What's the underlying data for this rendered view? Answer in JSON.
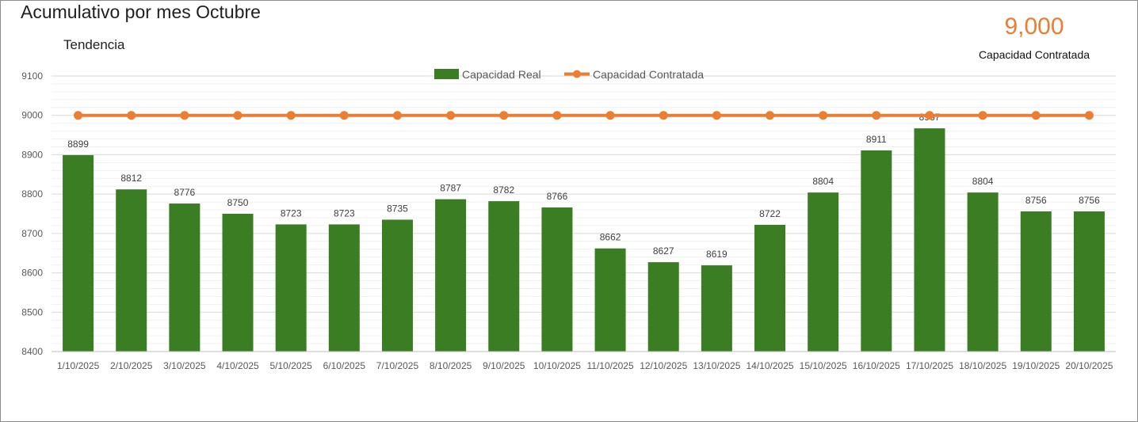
{
  "header": {
    "title": "Acumulativo por mes Octubre",
    "subtitle": "Tendencia"
  },
  "kpi": {
    "value": "9,000",
    "label": "Capacidad Contratada",
    "value_color": "#ED7D31"
  },
  "chart_data": {
    "type": "bar",
    "categories": [
      "1/10/2025",
      "2/10/2025",
      "3/10/2025",
      "4/10/2025",
      "5/10/2025",
      "6/10/2025",
      "7/10/2025",
      "8/10/2025",
      "9/10/2025",
      "10/10/2025",
      "11/10/2025",
      "12/10/2025",
      "13/10/2025",
      "14/10/2025",
      "15/10/2025",
      "16/10/2025",
      "17/10/2025",
      "18/10/2025",
      "19/10/2025",
      "20/10/2025"
    ],
    "series": [
      {
        "name": "Capacidad Real",
        "kind": "bar",
        "color": "#3A7D22",
        "values": [
          8899,
          8812,
          8776,
          8750,
          8723,
          8723,
          8735,
          8787,
          8782,
          8766,
          8662,
          8627,
          8619,
          8722,
          8804,
          8911,
          8967,
          8804,
          8756,
          8756
        ]
      },
      {
        "name": "Capacidad Contratada",
        "kind": "line",
        "color": "#ED7D31",
        "values": [
          9000,
          9000,
          9000,
          9000,
          9000,
          9000,
          9000,
          9000,
          9000,
          9000,
          9000,
          9000,
          9000,
          9000,
          9000,
          9000,
          9000,
          9000,
          9000,
          9000
        ]
      }
    ],
    "yticks": [
      8400,
      8500,
      8600,
      8700,
      8800,
      8900,
      9000,
      9100
    ],
    "ylim": [
      8400,
      9100
    ],
    "grid": true,
    "legend": "top-center",
    "title": "Acumulativo por mes Octubre",
    "xlabel": "",
    "ylabel": ""
  }
}
